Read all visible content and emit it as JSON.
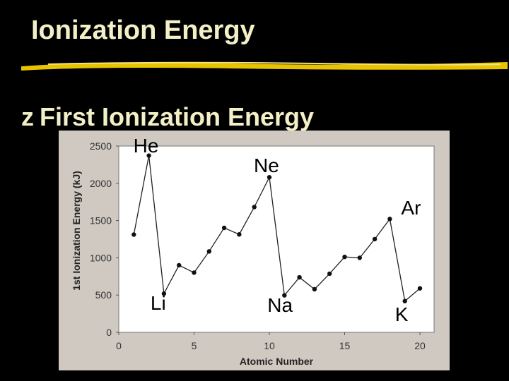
{
  "slide": {
    "title": "Ionization Energy",
    "bullet_glyph": "z",
    "bullet_text": "First Ionization Energy"
  },
  "colors": {
    "background": "#000000",
    "title": "#f3f0c8",
    "rule": "#e8c400",
    "panel": "#cfc9c2",
    "plot": "#ffffff"
  },
  "chart_data": {
    "type": "line",
    "title": "",
    "xlabel": "Atomic Number",
    "ylabel": "1st Ionization Energy (kJ)",
    "xlim": [
      0,
      20
    ],
    "ylim": [
      0,
      2500
    ],
    "xticks": [
      0,
      5,
      10,
      15,
      20
    ],
    "yticks": [
      0,
      500,
      1000,
      1500,
      2000,
      2500
    ],
    "grid": false,
    "series": [
      {
        "x": [
          1,
          2,
          3,
          4,
          5,
          6,
          7,
          8,
          9,
          10,
          11,
          12,
          13,
          14,
          15,
          16,
          17,
          18,
          19,
          20
        ],
        "y": [
          1312,
          2372,
          520,
          900,
          801,
          1086,
          1402,
          1314,
          1681,
          2081,
          496,
          738,
          578,
          787,
          1012,
          1000,
          1251,
          1521,
          419,
          590
        ]
      }
    ],
    "annotations": [
      {
        "text": "He",
        "x": 2
      },
      {
        "text": "Ne",
        "x": 10
      },
      {
        "text": "Ar",
        "x": 18
      },
      {
        "text": "Li",
        "x": 3
      },
      {
        "text": "Na",
        "x": 11
      },
      {
        "text": "K",
        "x": 19
      }
    ]
  }
}
